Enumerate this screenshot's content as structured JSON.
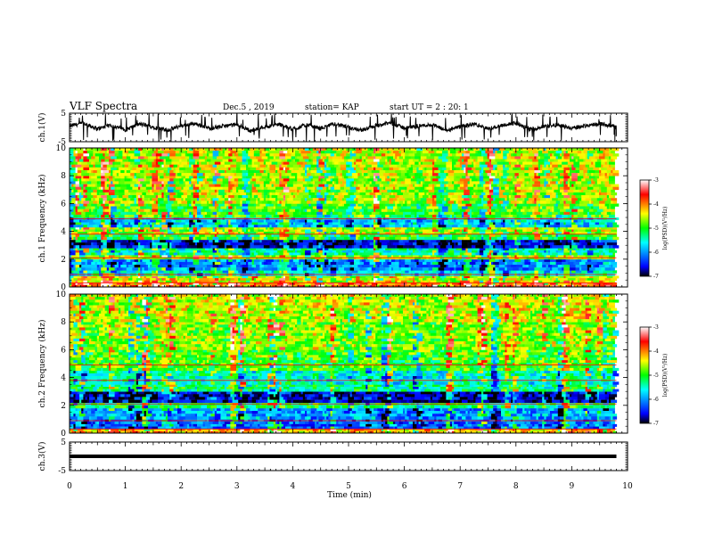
{
  "header": {
    "title": "VLF Spectra",
    "date": "Dec.5 , 2019",
    "station": "station= KAP",
    "start_ut": "start UT = 2 : 20: 1"
  },
  "chart_data": [
    {
      "type": "line",
      "panel": "ch1-voltage",
      "ylabel": "ch.1(V)",
      "ylim": [
        -5,
        5
      ],
      "ytick_labels": [
        "5",
        "-5"
      ],
      "xlim": [
        0,
        10
      ],
      "series": [
        {
          "x": [
            0,
            0.25,
            0.5,
            0.75,
            1.0,
            1.25,
            1.5,
            1.75,
            2.0,
            2.25,
            2.5,
            2.75,
            3.0,
            3.25,
            3.5,
            3.75,
            4.0,
            4.25,
            4.5,
            4.75,
            5.0,
            5.25,
            5.5,
            5.75,
            6.0,
            6.25,
            6.5,
            6.75,
            7.0,
            7.25,
            7.5,
            7.75,
            8.0,
            8.25,
            8.5,
            8.75,
            9.0,
            9.25,
            9.5,
            9.75,
            9.8
          ],
          "values": [
            0.5,
            1.5,
            -0.5,
            0.8,
            -0.8,
            1.2,
            0.2,
            -1.0,
            0.6,
            1.4,
            -0.3,
            0.4,
            1.0,
            -1.2,
            0.3,
            1.1,
            -0.6,
            0.9,
            -0.4,
            1.3,
            0.0,
            -0.9,
            0.7,
            1.6,
            -0.2,
            0.5,
            1.0,
            -1.1,
            0.2,
            1.2,
            -0.5,
            0.8,
            1.5,
            -0.7,
            0.3,
            1.0,
            -0.3,
            0.6,
            1.4,
            0.4,
            0.1
          ]
        }
      ],
      "trace_color": "#000000"
    },
    {
      "type": "heatmap",
      "panel": "ch1-spectrogram",
      "ylabel": "ch.1 Frequency (kHz)",
      "ylim": [
        0,
        10
      ],
      "ytick_labels": [
        "0",
        "2",
        "4",
        "6",
        "8",
        "10"
      ],
      "xlim": [
        0,
        10
      ],
      "data_x_end": 9.8,
      "value_range": [
        -7,
        -3
      ],
      "frequency_bands": [
        {
          "from": 0.0,
          "to": 0.3,
          "level": -3.8
        },
        {
          "from": 0.3,
          "to": 0.8,
          "level": -4.4
        },
        {
          "from": 0.8,
          "to": 1.2,
          "level": -5.6
        },
        {
          "from": 1.2,
          "to": 2.0,
          "level": -6.0
        },
        {
          "from": 2.0,
          "to": 2.3,
          "level": -4.6
        },
        {
          "from": 2.3,
          "to": 2.8,
          "level": -5.4
        },
        {
          "from": 2.8,
          "to": 3.4,
          "level": -6.6
        },
        {
          "from": 3.4,
          "to": 3.8,
          "level": -5.0
        },
        {
          "from": 3.8,
          "to": 4.3,
          "level": -4.6
        },
        {
          "from": 4.3,
          "to": 5.0,
          "level": -5.8
        },
        {
          "from": 5.0,
          "to": 6.0,
          "level": -4.9
        },
        {
          "from": 6.0,
          "to": 8.0,
          "level": -4.6
        },
        {
          "from": 8.0,
          "to": 10.0,
          "level": -4.5
        }
      ]
    },
    {
      "type": "heatmap",
      "panel": "ch2-spectrogram",
      "ylabel": "ch.2 Frequency (kHz)",
      "ylim": [
        0,
        10
      ],
      "ytick_labels": [
        "0",
        "2",
        "4",
        "6",
        "8",
        "10"
      ],
      "xlim": [
        0,
        10
      ],
      "data_x_end": 9.8,
      "value_range": [
        -7,
        -3
      ],
      "frequency_bands": [
        {
          "from": 0.0,
          "to": 0.3,
          "level": -4.2
        },
        {
          "from": 0.3,
          "to": 1.0,
          "level": -6.2
        },
        {
          "from": 1.0,
          "to": 1.8,
          "level": -6.0
        },
        {
          "from": 1.8,
          "to": 2.2,
          "level": -5.2
        },
        {
          "from": 2.2,
          "to": 3.0,
          "level": -6.7
        },
        {
          "from": 3.0,
          "to": 3.5,
          "level": -5.3
        },
        {
          "from": 3.5,
          "to": 4.5,
          "level": -5.5
        },
        {
          "from": 4.5,
          "to": 6.0,
          "level": -4.9
        },
        {
          "from": 6.0,
          "to": 8.0,
          "level": -4.7
        },
        {
          "from": 8.0,
          "to": 10.0,
          "level": -4.5
        }
      ]
    },
    {
      "type": "line",
      "panel": "ch3-voltage",
      "ylabel": "ch.3(V)",
      "ylim": [
        -5,
        5
      ],
      "ytick_labels": [
        "5",
        "-5"
      ],
      "xlim": [
        0,
        10
      ],
      "xlabel": "Time (min)",
      "xtick_labels": [
        "0",
        "1",
        "2",
        "3",
        "4",
        "5",
        "6",
        "7",
        "8",
        "9",
        "10"
      ],
      "series": [
        {
          "x": [
            0,
            9.8
          ],
          "values": [
            0,
            0
          ]
        }
      ],
      "trace_color": "#000000"
    }
  ],
  "colorbars": [
    {
      "panel": "ch1-colorbar",
      "label": "log(PSD)(V²/Hz)",
      "tick_labels": [
        "-3",
        "-4",
        "-5",
        "-6",
        "-7"
      ],
      "range": [
        -7,
        -3
      ],
      "scale": [
        "#000000",
        "#0000ff",
        "#00ffff",
        "#00ff00",
        "#ffff00",
        "#ff0000",
        "#ffffff"
      ]
    },
    {
      "panel": "ch2-colorbar",
      "label": "log(PSD)(V²/Hz)",
      "tick_labels": [
        "-3",
        "-4",
        "-5",
        "-6",
        "-7"
      ],
      "range": [
        -7,
        -3
      ],
      "scale": [
        "#000000",
        "#0000ff",
        "#00ffff",
        "#00ff00",
        "#ffff00",
        "#ff0000",
        "#ffffff"
      ]
    }
  ]
}
